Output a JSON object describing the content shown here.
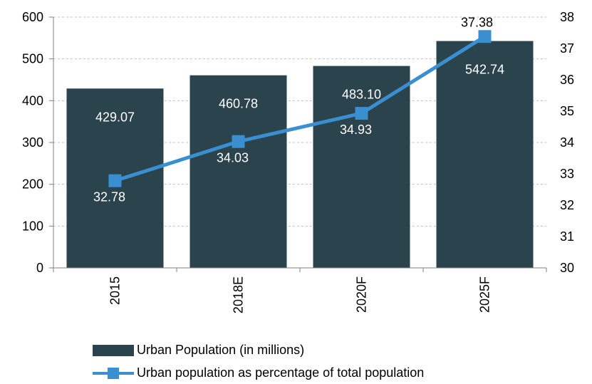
{
  "chart_data": {
    "type": "bar+line",
    "categories": [
      "2015",
      "2018E",
      "2020F",
      "2025F"
    ],
    "series": [
      {
        "name": "Urban Population (in millions)",
        "type": "bar",
        "axis": "left",
        "values": [
          429.07,
          460.78,
          483.1,
          542.74
        ],
        "labels": [
          "429.07",
          "460.78",
          "483.10",
          "542.74"
        ]
      },
      {
        "name": "Urban population as percentage of total population",
        "type": "line",
        "axis": "right",
        "values": [
          32.78,
          34.03,
          34.93,
          37.38
        ],
        "labels": [
          "32.78",
          "34.03",
          "34.93",
          "37.38"
        ]
      }
    ],
    "y_left": {
      "min": 0,
      "max": 600,
      "ticks": [
        "0",
        "100",
        "200",
        "300",
        "400",
        "500",
        "600"
      ]
    },
    "y_right": {
      "min": 30,
      "max": 38,
      "ticks": [
        "30",
        "31",
        "32",
        "33",
        "34",
        "35",
        "36",
        "37",
        "38"
      ]
    },
    "grid": "horizontal-dashed",
    "legend_position": "bottom",
    "colors": {
      "bar": "#2b434c",
      "line": "#3a8fd0",
      "grid": "#c0c0c0",
      "axis": "#808080"
    }
  }
}
